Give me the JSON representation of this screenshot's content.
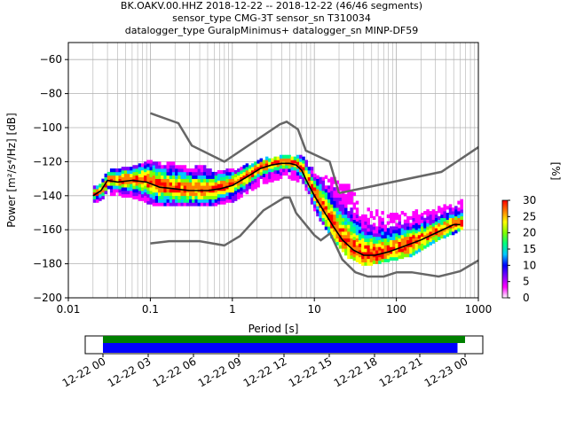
{
  "title_lines": [
    "BK.OAKV.00.HHZ   2018-12-22 -- 2018-12-22  (46/46 segments)",
    "sensor_type CMG-3T sensor_sn T310034",
    "datalogger_type GuralpMinimus+ datalogger_sn MINP-DF59"
  ],
  "chart_data": [
    {
      "type": "heatmap",
      "xlabel": "Period [s]",
      "ylabel": "Power [m²/s⁴/Hz] [dB]",
      "xscale": "log",
      "xlim": [
        0.01,
        1000
      ],
      "ylim": [
        -200,
        -50
      ],
      "x_ticks": [
        {
          "value": 0.01,
          "label": "0.01"
        },
        {
          "value": 0.1,
          "label": "0.1"
        },
        {
          "value": 1,
          "label": "1"
        },
        {
          "value": 10,
          "label": "10"
        },
        {
          "value": 100,
          "label": "100"
        },
        {
          "value": 1000,
          "label": "1000"
        }
      ],
      "y_ticks": [
        -60,
        -80,
        -100,
        -120,
        -140,
        -160,
        -180,
        -200
      ],
      "grid": true,
      "colorbar": {
        "label": "[%]",
        "min": 0,
        "max": 30,
        "ticks": [
          0,
          5,
          10,
          15,
          20,
          25,
          30
        ],
        "colors": [
          "#ffffff",
          "#ff00ff",
          "#8000ff",
          "#0000ff",
          "#00c8ff",
          "#00ff80",
          "#80ff00",
          "#ffff00",
          "#ff8000",
          "#ff0000"
        ]
      },
      "noise_model_high": {
        "x": [
          0.1,
          0.22,
          0.32,
          0.8,
          3.8,
          4.6,
          6.3,
          7.9,
          15.4,
          20
        ],
        "y": [
          -91.5,
          -97.4,
          -110.5,
          -120,
          -98,
          -96.5,
          -101,
          -113.5,
          -120,
          -138.5
        ]
      },
      "noise_model_high_tail": {
        "x": [
          20,
          354.8,
          1000
        ],
        "y": [
          -138.5,
          -126,
          -111.5
        ]
      },
      "noise_model_low": {
        "x": [
          0.1,
          0.17,
          0.4,
          0.8,
          1.24,
          2.4,
          4.3,
          5.0,
          6.0,
          10,
          12,
          15.6,
          21.9,
          31.6,
          45,
          70,
          101,
          154,
          328,
          600,
          1000
        ],
        "y": [
          -168,
          -166.7,
          -166.7,
          -169.2,
          -163.7,
          -148.6,
          -141.1,
          -141.1,
          -150.2,
          -163.2,
          -166.2,
          -162.1,
          -177.5,
          -185,
          -187.5,
          -187.5,
          -185,
          -185,
          -187.5,
          -184.4,
          -178
        ]
      },
      "mode_curve": {
        "x": [
          0.02,
          0.025,
          0.03,
          0.04,
          0.06,
          0.09,
          0.13,
          0.2,
          0.3,
          0.5,
          0.7,
          1.0,
          1.5,
          2.2,
          3.0,
          4.0,
          5.0,
          6.0,
          7.0,
          8.0,
          10,
          13,
          17,
          22,
          30,
          40,
          55,
          80,
          120,
          200,
          300,
          500,
          600
        ],
        "y": [
          -140,
          -137,
          -131,
          -132,
          -131,
          -132,
          -135,
          -136,
          -137,
          -137,
          -136,
          -134,
          -129,
          -124,
          -122,
          -121,
          -121,
          -122,
          -125,
          -131,
          -140,
          -149,
          -158,
          -166,
          -172,
          -175,
          -175,
          -173,
          -170,
          -166,
          -162,
          -157,
          -157
        ]
      },
      "density_spread_db": [
        {
          "x": 0.02,
          "low": -144,
          "high": -136
        },
        {
          "x": 0.03,
          "low": -139,
          "high": -126
        },
        {
          "x": 0.06,
          "low": -141,
          "high": -124
        },
        {
          "x": 0.1,
          "low": -145,
          "high": -120
        },
        {
          "x": 0.2,
          "low": -146,
          "high": -122
        },
        {
          "x": 0.5,
          "low": -146,
          "high": -124
        },
        {
          "x": 1.0,
          "low": -143,
          "high": -126
        },
        {
          "x": 2.0,
          "low": -134,
          "high": -120
        },
        {
          "x": 4.0,
          "low": -129,
          "high": -117
        },
        {
          "x": 7.0,
          "low": -132,
          "high": -118
        },
        {
          "x": 10,
          "low": -150,
          "high": -128
        },
        {
          "x": 15,
          "low": -163,
          "high": -130
        },
        {
          "x": 25,
          "low": -176,
          "high": -134
        },
        {
          "x": 40,
          "low": -181,
          "high": -148
        },
        {
          "x": 80,
          "low": -178,
          "high": -152
        },
        {
          "x": 150,
          "low": -175,
          "high": -150
        },
        {
          "x": 300,
          "low": -166,
          "high": -148
        },
        {
          "x": 600,
          "low": -160,
          "high": -144
        }
      ]
    },
    {
      "type": "bar",
      "xlim": [
        "12-22 00",
        "12-23 00"
      ],
      "x_tick_labels": [
        "12-22 00",
        "12-22 03",
        "12-22 06",
        "12-22 09",
        "12-22 12",
        "12-22 15",
        "12-22 18",
        "12-22 21",
        "12-23 00"
      ],
      "series": [
        {
          "color": "#008000",
          "start_hour": 0,
          "end_hour": 24.0
        },
        {
          "color": "#0000ff",
          "start_hour": 0,
          "end_hour": 23.5
        }
      ]
    }
  ]
}
